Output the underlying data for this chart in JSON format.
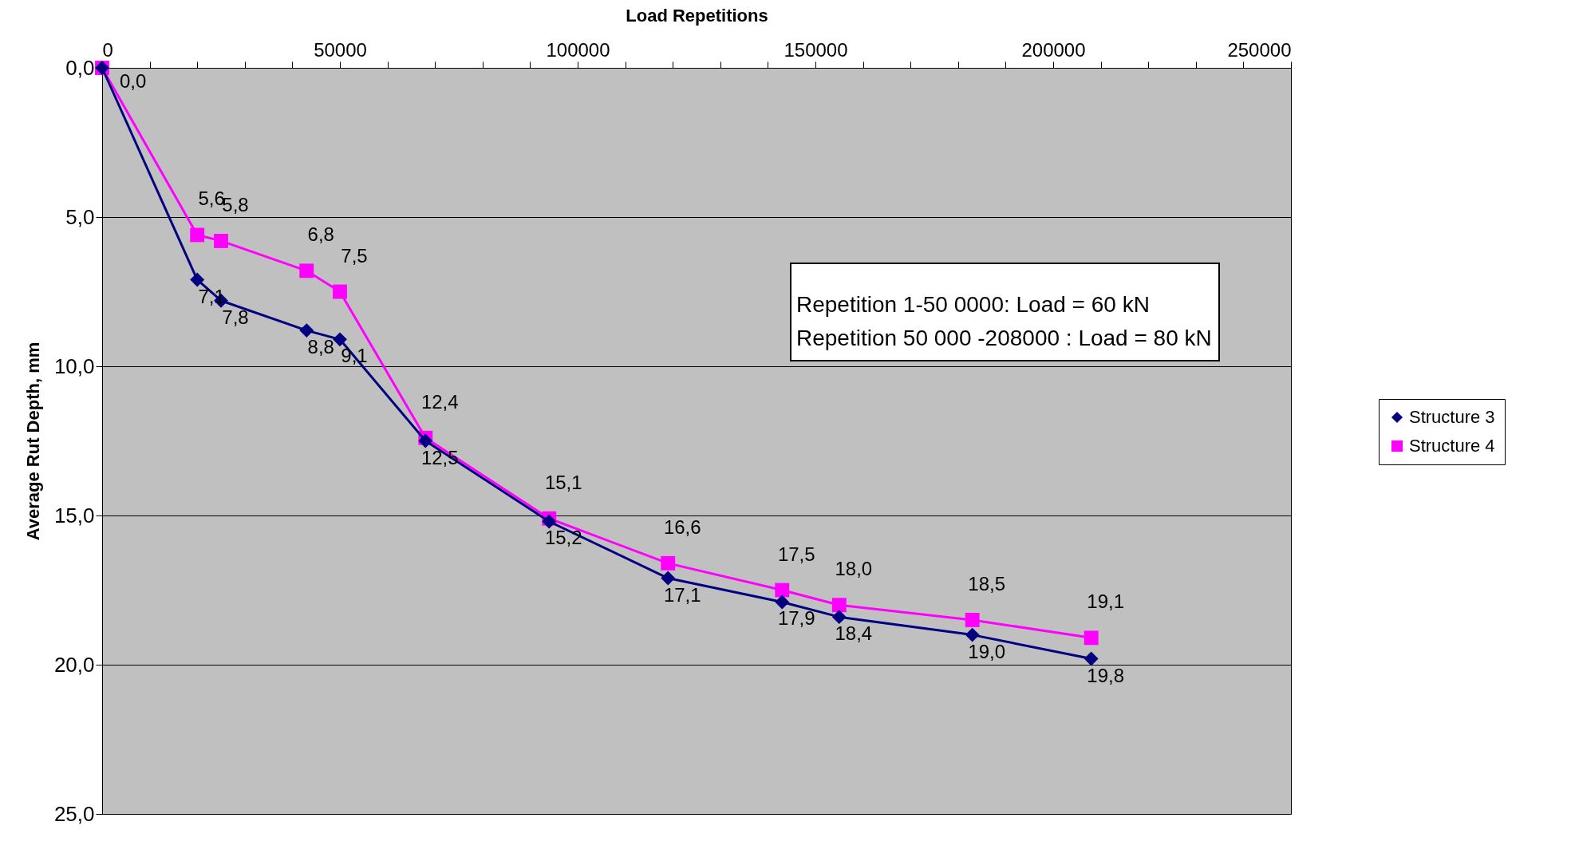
{
  "chart_data": {
    "type": "line",
    "xlabel": "Load Repetitions",
    "ylabel": "Average Rut Depth, mm",
    "x": [
      0,
      20000,
      25000,
      43000,
      50000,
      68000,
      94000,
      119000,
      143000,
      155000,
      183000,
      208000
    ],
    "series": [
      {
        "name": "Structure 3",
        "color": "#000080",
        "marker": "diamond",
        "values": [
          0,
          7.1,
          7.8,
          8.8,
          9.1,
          12.5,
          15.2,
          17.1,
          17.9,
          18.4,
          19.0,
          19.8
        ],
        "value_labels": [
          null,
          "7,1",
          "7,8",
          "8,8",
          "9,1",
          "12,5",
          "15,2",
          "17,1",
          "17,9",
          "18,4",
          "19,0",
          "19,8"
        ]
      },
      {
        "name": "Structure 4",
        "color": "#ff00ff",
        "marker": "square",
        "values": [
          0,
          5.6,
          5.8,
          6.8,
          7.5,
          12.4,
          15.1,
          16.6,
          17.5,
          18.0,
          18.5,
          19.1
        ],
        "value_labels": [
          "0,0",
          "5,6",
          "5,8",
          "6,8",
          "7,5",
          "12,4",
          "15,1",
          "16,6",
          "17,5",
          "18,0",
          "18,5",
          "19,1"
        ]
      }
    ],
    "xlim": [
      0,
      250000
    ],
    "xticks": [
      0,
      {
        "value": 10000,
        "label": null
      },
      {
        "value": 20000,
        "label": null
      },
      {
        "value": 30000,
        "label": null
      },
      {
        "value": 40000,
        "label": null
      },
      50000,
      {
        "value": 60000,
        "label": null
      },
      {
        "value": 70000,
        "label": null
      },
      {
        "value": 80000,
        "label": null
      },
      {
        "value": 90000,
        "label": null
      },
      100000,
      {
        "value": 110000,
        "label": null
      },
      {
        "value": 120000,
        "label": null
      },
      {
        "value": 130000,
        "label": null
      },
      {
        "value": 140000,
        "label": null
      },
      150000,
      {
        "value": 160000,
        "label": null
      },
      {
        "value": 170000,
        "label": null
      },
      {
        "value": 180000,
        "label": null
      },
      {
        "value": 190000,
        "label": null
      },
      200000,
      {
        "value": 210000,
        "label": null
      },
      {
        "value": 220000,
        "label": null
      },
      {
        "value": 230000,
        "label": null
      },
      {
        "value": 240000,
        "label": null
      },
      250000
    ],
    "ylim": [
      25,
      0
    ],
    "yticks": [
      {
        "value": 0,
        "label": "0,0"
      },
      {
        "value": 5,
        "label": "5,0"
      },
      {
        "value": 10,
        "label": "10,0"
      },
      {
        "value": 15,
        "label": "15,0"
      },
      {
        "value": 20,
        "label": "20,0"
      },
      {
        "value": 25,
        "label": "25,0"
      }
    ],
    "grid": "y",
    "legend": "right",
    "annotations": [
      "Repetition 1-50 0000: Load = 60 kN",
      "Repetition 50 000 -208000 : Load = 80 kN"
    ]
  }
}
